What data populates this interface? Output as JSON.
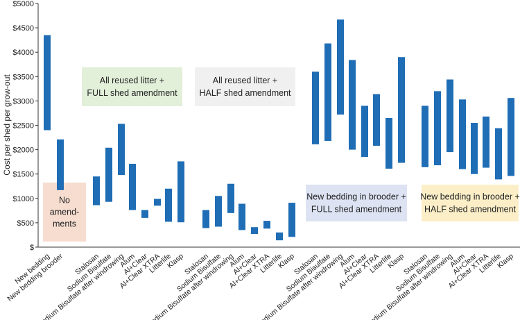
{
  "chart_data": {
    "type": "bar",
    "bar_style": "floating-range",
    "ylabel": "Cost per shed per grow-out",
    "ylim": [
      0,
      5000
    ],
    "yticks": [
      0,
      500,
      1000,
      1500,
      2000,
      2500,
      3000,
      3500,
      4000,
      4500,
      5000
    ],
    "ytick_labels": [
      "$",
      "$500",
      "$1000",
      "$1500",
      "$2000",
      "$2500",
      "$3000",
      "$3500",
      "$4000",
      "$4500",
      "$5000"
    ],
    "bar_color": "#1f6db5",
    "categories": [
      "New bedding",
      "New bedding brooder",
      "Stalosan",
      "Sodium Bisulfate",
      "Sodium Bisulfate after windrowing",
      "Alum",
      "Al+Clear",
      "Al+Clear XTRA",
      "Litterlife",
      "Klasp",
      "Stalosan",
      "Sodium Bisulfate",
      "Sodium Bisulfate after windrowing",
      "Alum",
      "Al+Clear",
      "Al+Clear XTRA",
      "Litterlife",
      "Klasp",
      "Stalosan",
      "Sodium Bisulfate",
      "Sodium Bisulfate after windrowing",
      "Alum",
      "Al+Clear",
      "Al+Clear XTRA",
      "Litterlife",
      "Klasp",
      "Stalosan",
      "Sodium Bisulfate",
      "Sodium Bisulfate after windrowing",
      "Alum",
      "Al+Clear",
      "Al+Clear XTRA",
      "Litterlife",
      "Klasp"
    ],
    "ranges": [
      [
        2400,
        4350
      ],
      [
        1170,
        2210
      ],
      [
        860,
        1450
      ],
      [
        930,
        2040
      ],
      [
        1480,
        2530
      ],
      [
        760,
        1710
      ],
      [
        600,
        760
      ],
      [
        850,
        990
      ],
      [
        520,
        1200
      ],
      [
        510,
        1760
      ],
      [
        390,
        760
      ],
      [
        420,
        1050
      ],
      [
        700,
        1300
      ],
      [
        350,
        890
      ],
      [
        270,
        410
      ],
      [
        380,
        540
      ],
      [
        140,
        300
      ],
      [
        210,
        910
      ],
      [
        2110,
        3600
      ],
      [
        2180,
        4180
      ],
      [
        2720,
        4670
      ],
      [
        2000,
        3840
      ],
      [
        1850,
        2900
      ],
      [
        2080,
        3140
      ],
      [
        1610,
        2650
      ],
      [
        1730,
        3900
      ],
      [
        1640,
        2900
      ],
      [
        1680,
        3200
      ],
      [
        1950,
        3440
      ],
      [
        1600,
        3030
      ],
      [
        1500,
        2550
      ],
      [
        1630,
        2680
      ],
      [
        1390,
        2440
      ],
      [
        1460,
        3060
      ]
    ],
    "groups": [
      {
        "label_lines": [
          "No",
          "amend-",
          "ments"
        ],
        "fill": "#f6ddd0"
      },
      {
        "label_lines": [
          "All reused litter +",
          "FULL shed amendment"
        ],
        "fill": "#e2efd9"
      },
      {
        "label_lines": [
          "All reused litter +",
          "HALF shed amendment"
        ],
        "fill": "#f0f0f0"
      },
      {
        "label_lines": [
          "New bedding in brooder +",
          "FULL shed amendment"
        ],
        "fill": "#dde3f3"
      },
      {
        "label_lines": [
          "New bedding in brooder +",
          "HALF shed amendment"
        ],
        "fill": "#fcefc8"
      }
    ]
  }
}
